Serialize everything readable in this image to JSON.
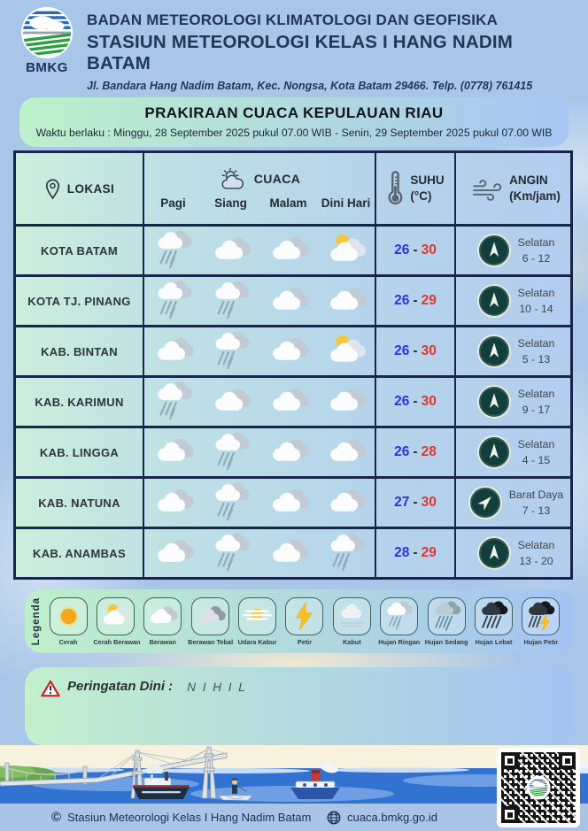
{
  "header": {
    "logo_text": "BMKG",
    "agency": "BADAN METEOROLOGI KLIMATOLOGI DAN GEOFISIKA",
    "station": "STASIUN METEOROLOGI KELAS I HANG NADIM BATAM",
    "address": "Jl. Bandara Hang Nadim Batam, Kec. Nongsa, Kota Batam 29466.  Telp. (0778) 761415"
  },
  "title_panel": {
    "title": "PRAKIRAAN CUACA KEPULAUAN RIAU",
    "validity": "Waktu berlaku : Minggu, 28 September 2025 pukul 07.00 WIB - Senin, 29 September 2025 pukul 07.00 WIB"
  },
  "table": {
    "headers": {
      "location_label": "LOKASI",
      "weather_label": "CUACA",
      "time_labels": [
        "Pagi",
        "Siang",
        "Malam",
        "Dini Hari"
      ],
      "temp_label_1": "SUHU",
      "temp_label_2": "(°C)",
      "temp_separator": "-",
      "wind_label_1": "ANGIN",
      "wind_label_2": "(Km/jam)"
    },
    "rows": [
      {
        "location": "KOTA BATAM",
        "pagi": "hujan-ringan",
        "siang": "berawan",
        "malam": "berawan",
        "dini_hari": "cerah-berawan",
        "temp_min": "26",
        "temp_max": "30",
        "wind_dir": "Selatan",
        "wind_speed": "6 - 12",
        "compass_deg": 0
      },
      {
        "location": "KOTA TJ. PINANG",
        "pagi": "hujan-ringan",
        "siang": "hujan-ringan",
        "malam": "berawan",
        "dini_hari": "berawan",
        "temp_min": "26",
        "temp_max": "29",
        "wind_dir": "Selatan",
        "wind_speed": "10 - 14",
        "compass_deg": 0
      },
      {
        "location": "KAB. BINTAN",
        "pagi": "berawan",
        "siang": "hujan-ringan",
        "malam": "berawan",
        "dini_hari": "cerah-berawan",
        "temp_min": "26",
        "temp_max": "30",
        "wind_dir": "Selatan",
        "wind_speed": "5 - 13",
        "compass_deg": 0
      },
      {
        "location": "KAB. KARIMUN",
        "pagi": "hujan-ringan",
        "siang": "berawan",
        "malam": "berawan",
        "dini_hari": "berawan",
        "temp_min": "26",
        "temp_max": "30",
        "wind_dir": "Selatan",
        "wind_speed": "9 - 17",
        "compass_deg": 0
      },
      {
        "location": "KAB. LINGGA",
        "pagi": "berawan",
        "siang": "hujan-ringan",
        "malam": "berawan",
        "dini_hari": "berawan",
        "temp_min": "26",
        "temp_max": "28",
        "wind_dir": "Selatan",
        "wind_speed": "4 - 15",
        "compass_deg": 0
      },
      {
        "location": "KAB. NATUNA",
        "pagi": "berawan",
        "siang": "hujan-ringan",
        "malam": "berawan",
        "dini_hari": "berawan",
        "temp_min": "27",
        "temp_max": "30",
        "wind_dir": "Barat Daya",
        "wind_speed": "7 - 13",
        "compass_deg": 45
      },
      {
        "location": "KAB. ANAMBAS",
        "pagi": "berawan",
        "siang": "hujan-ringan",
        "malam": "berawan",
        "dini_hari": "hujan-ringan",
        "temp_min": "28",
        "temp_max": "29",
        "wind_dir": "Selatan",
        "wind_speed": "13 - 20",
        "compass_deg": 0
      }
    ]
  },
  "legend": {
    "label": "Legenda",
    "items": [
      {
        "icon": "cerah",
        "label": "Cerah"
      },
      {
        "icon": "cerah-berawan",
        "label": "Cerah Berawan"
      },
      {
        "icon": "berawan",
        "label": "Berawan"
      },
      {
        "icon": "berawan-tebal",
        "label": "Berawan Tebal"
      },
      {
        "icon": "udara-kabur",
        "label": "Udara Kabur"
      },
      {
        "icon": "petir",
        "label": "Petir"
      },
      {
        "icon": "kabut",
        "label": "Kabut"
      },
      {
        "icon": "hujan-ringan",
        "label": "Hujan Ringan"
      },
      {
        "icon": "hujan-sedang",
        "label": "Hujan Sedang"
      },
      {
        "icon": "hujan-lebat",
        "label": "Hujan Lebat"
      },
      {
        "icon": "hujan-petir",
        "label": "Hujan Petir"
      }
    ]
  },
  "warning": {
    "label": "Peringatan Dini :",
    "value": "N I H I L"
  },
  "footer": {
    "copyright_symbol": "©",
    "copyright": "Stasiun Meteorologi Kelas I Hang Nadim Batam",
    "website": "cuaca.bmkg.go.id"
  },
  "icons": {
    "logo": "bmkg-logo",
    "location": "pin-icon",
    "weather": "sun-cloud-icon",
    "temperature": "thermometer-icon",
    "wind": "wind-icon",
    "compass": "compass-icon",
    "warning": "warning-triangle-icon",
    "website": "globe-icon",
    "qr": "qr-code"
  },
  "colors": {
    "background": "#a8c6e8",
    "header_text": "#223755",
    "table_border": "#17264a",
    "temp_min_blue": "#2a36d8",
    "temp_max_red": "#e2352b",
    "compass_bg": "#123f3c",
    "panel_gradient_start": "#bdf0cb",
    "panel_gradient_end": "#a5c6f2",
    "bottom_bar": "#a9c4e6"
  }
}
